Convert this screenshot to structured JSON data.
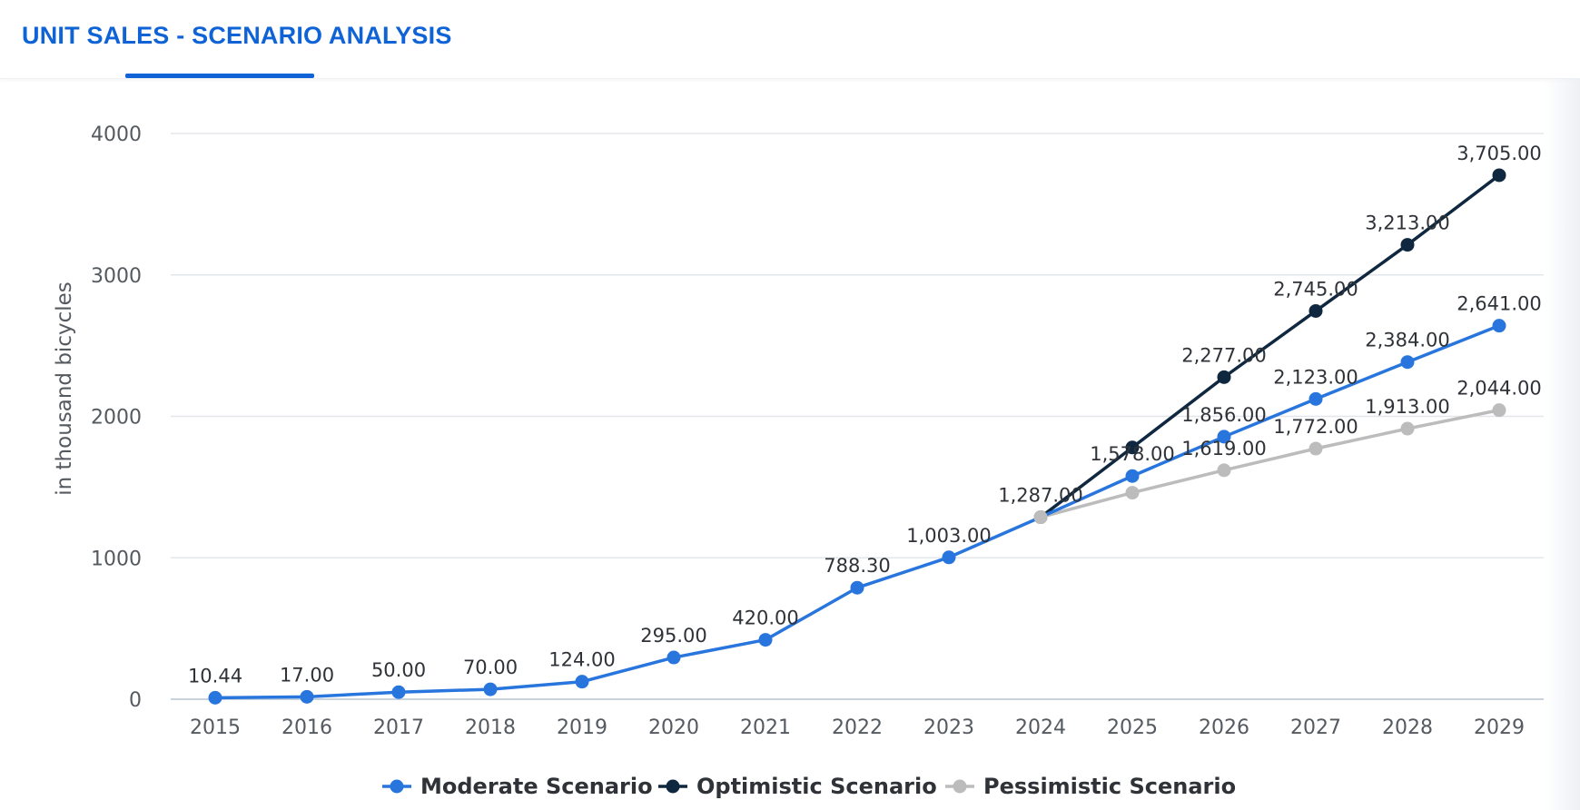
{
  "tab": {
    "label": "UNIT SALES - SCENARIO ANALYSIS"
  },
  "chart_data": {
    "type": "line",
    "title": "",
    "xlabel": "",
    "ylabel": "in thousand bicycles",
    "categories": [
      "2015",
      "2016",
      "2017",
      "2018",
      "2019",
      "2020",
      "2021",
      "2022",
      "2023",
      "2024",
      "2025",
      "2026",
      "2027",
      "2028",
      "2029"
    ],
    "ylim": [
      0,
      4000
    ],
    "yticks": [
      "0",
      "1000",
      "2000",
      "3000",
      "4000"
    ],
    "grid": true,
    "legend_position": "bottom",
    "series": [
      {
        "name": "Moderate Scenario",
        "color": "#2876dd",
        "values": [
          10.44,
          17.0,
          50.0,
          70.0,
          124.0,
          295.0,
          420.0,
          788.3,
          1003.0,
          1287.0,
          1578.0,
          1856.0,
          2123.0,
          2384.0,
          2641.0
        ],
        "labels": [
          "10.44",
          "17.00",
          "50.00",
          "70.00",
          "124.00",
          "295.00",
          "420.00",
          "788.30",
          "1,003.00",
          "1,287.00",
          "1,578.00",
          "1,856.00",
          "2,123.00",
          "2,384.00",
          "2,641.00"
        ]
      },
      {
        "name": "Optimistic Scenario",
        "color": "#0f2840",
        "values": [
          null,
          null,
          null,
          null,
          null,
          null,
          null,
          null,
          null,
          1287.0,
          1780.0,
          2277.0,
          2745.0,
          3213.0,
          3705.0
        ],
        "labels": [
          null,
          null,
          null,
          null,
          null,
          null,
          null,
          null,
          null,
          null,
          null,
          "2,277.00",
          "2,745.00",
          "3,213.00",
          "3,705.00"
        ]
      },
      {
        "name": "Pessimistic Scenario",
        "color": "#bcbcbc",
        "values": [
          null,
          null,
          null,
          null,
          null,
          null,
          null,
          null,
          null,
          1287.0,
          1460.0,
          1619.0,
          1772.0,
          1913.0,
          2044.0
        ],
        "labels": [
          null,
          null,
          null,
          null,
          null,
          null,
          null,
          null,
          null,
          null,
          null,
          "1,619.00",
          "1,772.00",
          "1,913.00",
          "2,044.00"
        ]
      }
    ]
  }
}
